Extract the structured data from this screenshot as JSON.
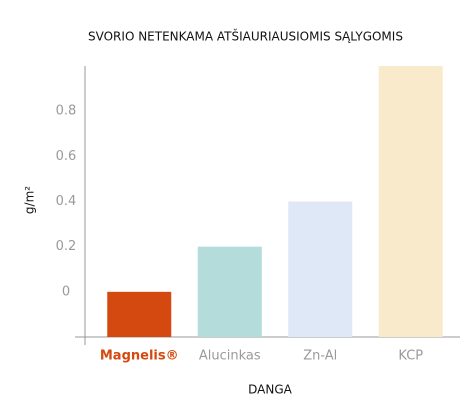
{
  "chart_data": {
    "type": "bar",
    "title": "SVORIO NETENKAMA ATŠIAURIAUSIOMIS SĄLYGOMIS",
    "y_label": "g/m²",
    "x_label": "DANGA",
    "categories": [
      "Magnelis®",
      "Alucinkas",
      "Zn-Al",
      "KCP"
    ],
    "values": [
      0,
      0.2,
      0.4,
      1.0
    ],
    "colors": [
      "#d4490f",
      "#b3dcdb",
      "#dfe8f6",
      "#f8eacb"
    ],
    "ylim": [
      -0.2,
      1.0
    ],
    "yticks": [
      0,
      0.2,
      0.4,
      0.6,
      0.8
    ],
    "grid": false
  }
}
